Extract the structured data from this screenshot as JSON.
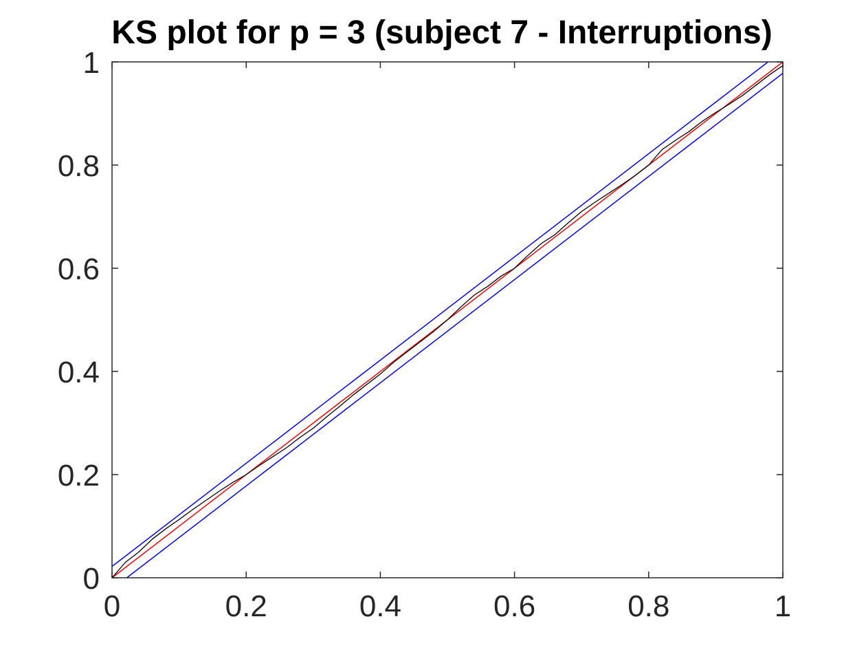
{
  "chart_data": {
    "type": "line",
    "title": "KS plot for p = 3 (subject 7 - Interruptions)",
    "xlabel": "",
    "ylabel": "",
    "xlim": [
      0,
      1
    ],
    "ylim": [
      0,
      1
    ],
    "xticks": [
      0,
      0.2,
      0.4,
      0.6,
      0.8,
      1
    ],
    "yticks": [
      0,
      0.2,
      0.4,
      0.6,
      0.8,
      1
    ],
    "xtick_labels": [
      "0",
      "0.2",
      "0.4",
      "0.6",
      "0.8",
      "1"
    ],
    "ytick_labels": [
      "0",
      "0.2",
      "0.4",
      "0.6",
      "0.8",
      "1"
    ],
    "grid": false,
    "legend": "none",
    "series": [
      {
        "color": "#ff0000",
        "x": [
          0,
          1
        ],
        "y": [
          0,
          1
        ]
      },
      {
        "color": "#0000ff",
        "x": [
          0,
          0.978
        ],
        "y": [
          0.022,
          1
        ]
      },
      {
        "color": "#0000ff",
        "x": [
          0.022,
          1
        ],
        "y": [
          0,
          0.978
        ]
      },
      {
        "color": "#000000",
        "x": [
          0,
          0.02,
          0.04,
          0.06,
          0.08,
          0.1,
          0.12,
          0.14,
          0.16,
          0.18,
          0.2,
          0.22,
          0.24,
          0.26,
          0.28,
          0.3,
          0.32,
          0.34,
          0.36,
          0.38,
          0.4,
          0.42,
          0.44,
          0.46,
          0.48,
          0.5,
          0.52,
          0.54,
          0.56,
          0.58,
          0.6,
          0.62,
          0.64,
          0.66,
          0.68,
          0.7,
          0.72,
          0.74,
          0.76,
          0.78,
          0.8,
          0.82,
          0.84,
          0.86,
          0.88,
          0.9,
          0.92,
          0.94,
          0.96,
          0.98,
          1
        ],
        "y": [
          0,
          0.03,
          0.05,
          0.075,
          0.095,
          0.113,
          0.132,
          0.15,
          0.168,
          0.185,
          0.2,
          0.218,
          0.235,
          0.252,
          0.272,
          0.29,
          0.312,
          0.333,
          0.355,
          0.375,
          0.395,
          0.418,
          0.438,
          0.458,
          0.478,
          0.5,
          0.525,
          0.548,
          0.565,
          0.585,
          0.6,
          0.625,
          0.648,
          0.665,
          0.688,
          0.71,
          0.728,
          0.745,
          0.762,
          0.78,
          0.8,
          0.83,
          0.848,
          0.865,
          0.885,
          0.902,
          0.918,
          0.935,
          0.955,
          0.975,
          0.993
        ]
      }
    ]
  }
}
